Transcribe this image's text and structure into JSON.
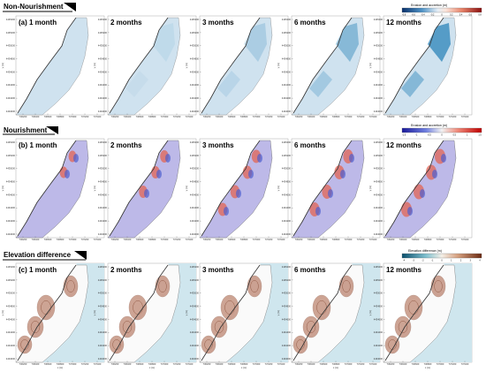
{
  "rows": [
    {
      "title": "Non-Nourishment",
      "letter": "(a)",
      "colorbar": {
        "title": "Erosion and accretion (m)",
        "ticks": [
          "-0.8",
          "-0.6",
          "-0.4",
          "-0.2",
          "0",
          "0.2",
          "0.4",
          "0.6",
          "0.8"
        ]
      }
    },
    {
      "title": "Nourishment",
      "letter": "(b)",
      "colorbar": {
        "title": "Erosion and accretion (m)",
        "ticks": [
          "-1.5",
          "-1",
          "-0.5",
          "0",
          "0.5",
          "1",
          "1.5"
        ]
      }
    },
    {
      "title": "Elevation difference",
      "letter": "(c)",
      "colorbar": {
        "title": "Elevation difference (m)",
        "ticks": [
          "-4",
          "-3",
          "-2",
          "-1",
          "0",
          "1",
          "2",
          "3",
          "4"
        ]
      }
    }
  ],
  "columns": [
    "1 month",
    "2 months",
    "3 months",
    "6 months",
    "12 months"
  ],
  "axes": {
    "y_ticks": [
      "4435400",
      "4435200",
      "4435000",
      "4434800",
      "4434600",
      "4434400",
      "4434200",
      "4434000"
    ],
    "x_ticks": [
      "736200",
      "736400",
      "736600",
      "736800",
      "737000",
      "737200",
      "737400"
    ],
    "y_label": "y (m)",
    "x_label": "x (m)"
  },
  "colors": {
    "land_blue": "#cfe2ef",
    "elev_blue": "#cfe6ee",
    "nour_purple": "#bdb9e8",
    "nour_red": "#e06a5c",
    "nour_blue": "#4f5fcf",
    "erosion_blue": "#3f8fc0",
    "elev_brown": "#a55a3e"
  }
}
